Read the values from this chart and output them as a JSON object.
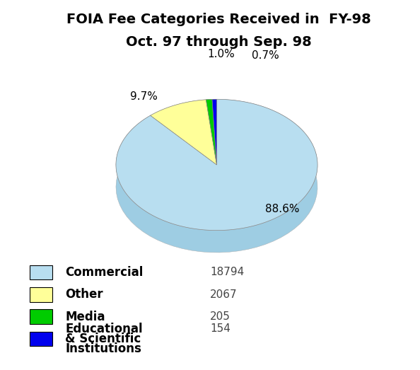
{
  "title_line1": "FOIA Fee Categories Received in  FY-98",
  "title_line2": "Oct. 97 through Sep. 98",
  "slices": [
    {
      "label": "Commercial",
      "value": 18794,
      "pct": "88.6%",
      "color": "#B8DEF0",
      "dark_color": "#9ECDE3"
    },
    {
      "label": "Other",
      "value": 2067,
      "pct": "9.7%",
      "color": "#FFFF99",
      "dark_color": "#EEEE66"
    },
    {
      "label": "Media",
      "value": 205,
      "pct": "1.0%",
      "color": "#00CC00",
      "dark_color": "#009900"
    },
    {
      "label": "Educational & Scientific\nInstitutions",
      "value": 154,
      "pct": "0.7%",
      "color": "#0000EE",
      "dark_color": "#0000AA"
    }
  ],
  "background_color": "#FFFFFF",
  "title_fontsize": 14,
  "legend_fontsize": 12,
  "pct_fontsize": 11,
  "count_fontsize": 11
}
